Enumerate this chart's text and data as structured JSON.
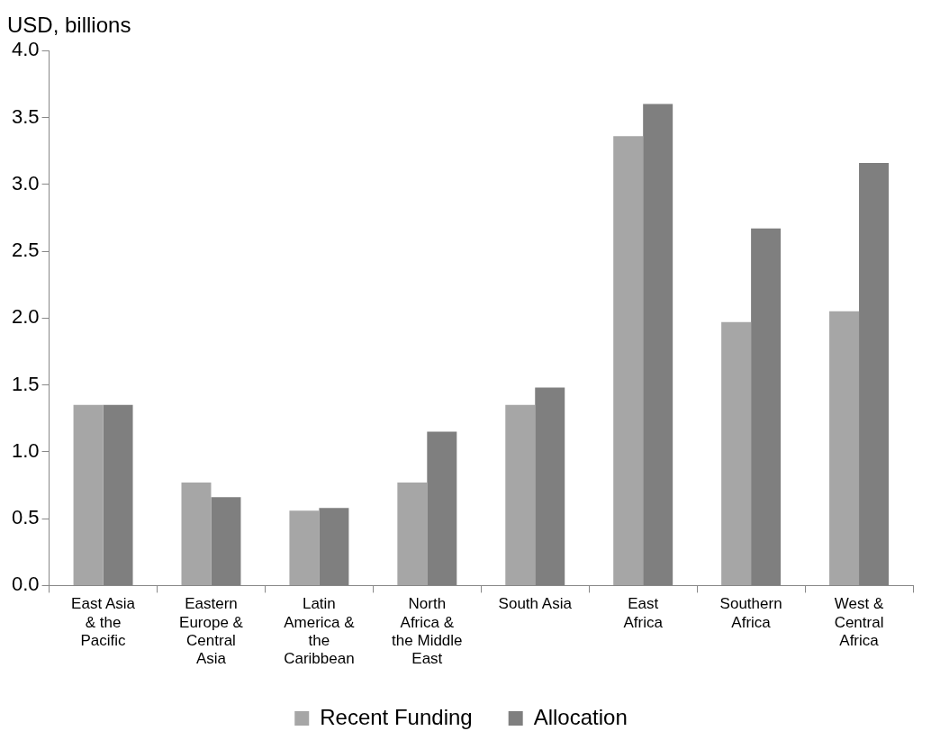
{
  "chart_data": {
    "type": "bar",
    "ylabel": "USD, billions",
    "categories": [
      "East Asia & the Pacific",
      "Eastern Europe & Central Asia",
      "Latin America & the Caribbean",
      "North Africa & the Middle East",
      "South Asia",
      "East Africa",
      "Southern Africa",
      "West & Central Africa"
    ],
    "series": [
      {
        "name": "Recent Funding",
        "color": "#a6a6a6",
        "values": [
          1.35,
          0.77,
          0.56,
          0.77,
          1.35,
          3.36,
          1.97,
          2.05
        ]
      },
      {
        "name": "Allocation",
        "color": "#7f7f7f",
        "values": [
          1.35,
          0.66,
          0.58,
          1.15,
          1.48,
          3.6,
          2.67,
          3.16
        ]
      }
    ],
    "ylim": [
      0,
      4
    ],
    "yticks": [
      {
        "value": 0,
        "label": "0.0"
      },
      {
        "value": 0.5,
        "label": "0.5"
      },
      {
        "value": 1,
        "label": "1.0"
      },
      {
        "value": 1.5,
        "label": "1.5"
      },
      {
        "value": 2,
        "label": "2.0"
      },
      {
        "value": 2.5,
        "label": "2.5"
      },
      {
        "value": 3,
        "label": "3.0"
      },
      {
        "value": 3.5,
        "label": "3.5"
      },
      {
        "value": 4,
        "label": "4.0"
      }
    ],
    "grid": false,
    "legend": "bottom"
  }
}
